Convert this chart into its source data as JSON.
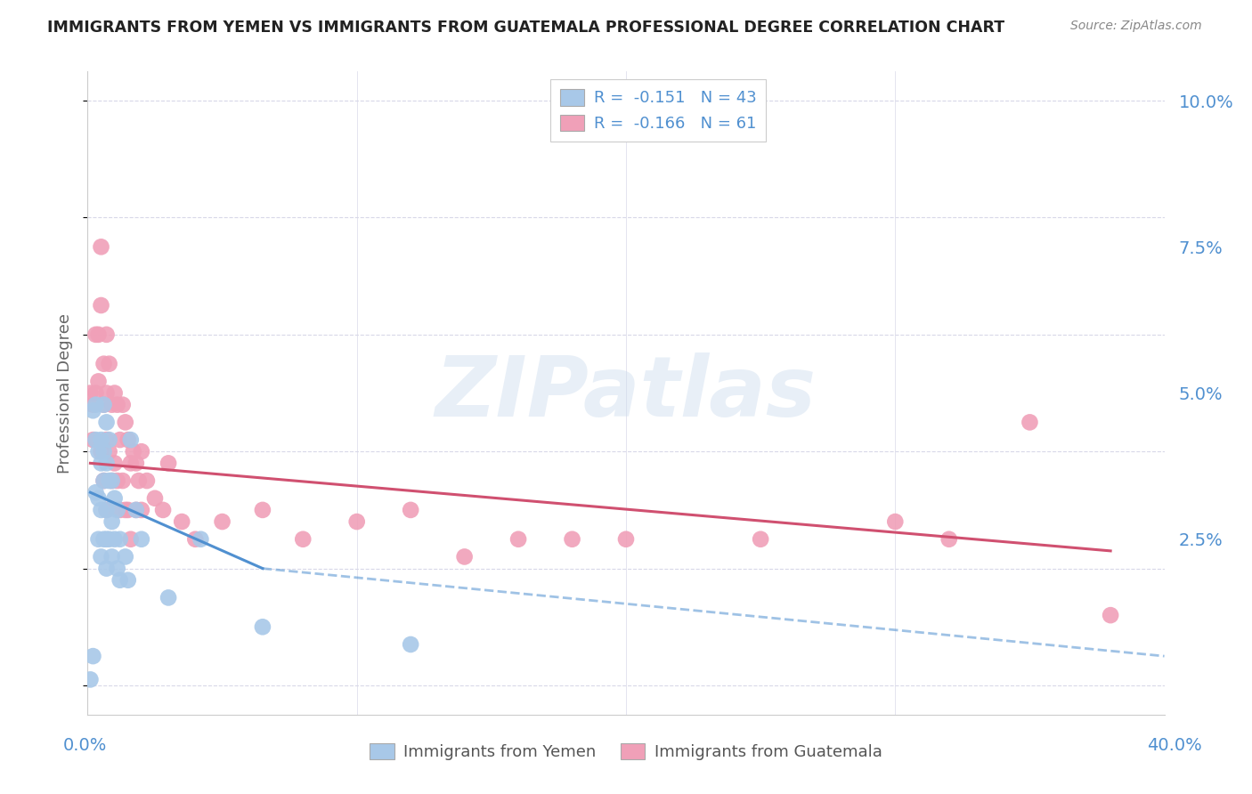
{
  "title": "IMMIGRANTS FROM YEMEN VS IMMIGRANTS FROM GUATEMALA PROFESSIONAL DEGREE CORRELATION CHART",
  "source": "Source: ZipAtlas.com",
  "ylabel": "Professional Degree",
  "xlim": [
    0.0,
    0.4
  ],
  "ylim": [
    -0.005,
    0.105
  ],
  "yticks": [
    0.0,
    0.025,
    0.05,
    0.075,
    0.1
  ],
  "ytick_labels": [
    "",
    "2.5%",
    "5.0%",
    "7.5%",
    "10.0%"
  ],
  "background_color": "#ffffff",
  "watermark_text": "ZIPatlas",
  "blue_color": "#a8c8e8",
  "pink_color": "#f0a0b8",
  "blue_line_color": "#5090d0",
  "pink_line_color": "#d05070",
  "grid_color": "#d8d8e8",
  "title_color": "#222222",
  "axis_label_color": "#5090d0",
  "yemen_scatter_x": [
    0.001,
    0.002,
    0.002,
    0.003,
    0.003,
    0.003,
    0.004,
    0.004,
    0.004,
    0.005,
    0.005,
    0.005,
    0.005,
    0.006,
    0.006,
    0.006,
    0.006,
    0.007,
    0.007,
    0.007,
    0.007,
    0.007,
    0.008,
    0.008,
    0.008,
    0.009,
    0.009,
    0.009,
    0.01,
    0.01,
    0.011,
    0.011,
    0.012,
    0.012,
    0.014,
    0.015,
    0.016,
    0.018,
    0.02,
    0.03,
    0.042,
    0.065,
    0.12
  ],
  "yemen_scatter_y": [
    0.001,
    0.047,
    0.005,
    0.042,
    0.033,
    0.048,
    0.04,
    0.032,
    0.025,
    0.042,
    0.038,
    0.03,
    0.022,
    0.048,
    0.04,
    0.035,
    0.025,
    0.045,
    0.038,
    0.03,
    0.025,
    0.02,
    0.042,
    0.035,
    0.025,
    0.035,
    0.028,
    0.022,
    0.032,
    0.025,
    0.03,
    0.02,
    0.025,
    0.018,
    0.022,
    0.018,
    0.042,
    0.03,
    0.025,
    0.015,
    0.025,
    0.01,
    0.007
  ],
  "guatemala_scatter_x": [
    0.001,
    0.002,
    0.002,
    0.003,
    0.003,
    0.004,
    0.004,
    0.005,
    0.005,
    0.005,
    0.006,
    0.006,
    0.006,
    0.007,
    0.007,
    0.007,
    0.007,
    0.008,
    0.008,
    0.009,
    0.009,
    0.01,
    0.01,
    0.011,
    0.011,
    0.012,
    0.012,
    0.013,
    0.013,
    0.014,
    0.014,
    0.015,
    0.015,
    0.016,
    0.016,
    0.017,
    0.018,
    0.018,
    0.019,
    0.02,
    0.02,
    0.022,
    0.025,
    0.028,
    0.03,
    0.035,
    0.04,
    0.05,
    0.065,
    0.08,
    0.1,
    0.12,
    0.14,
    0.16,
    0.18,
    0.2,
    0.25,
    0.3,
    0.32,
    0.35,
    0.38
  ],
  "guatemala_scatter_y": [
    0.05,
    0.048,
    0.042,
    0.06,
    0.05,
    0.06,
    0.052,
    0.075,
    0.065,
    0.04,
    0.055,
    0.048,
    0.035,
    0.06,
    0.05,
    0.042,
    0.03,
    0.055,
    0.04,
    0.048,
    0.035,
    0.05,
    0.038,
    0.048,
    0.035,
    0.042,
    0.03,
    0.048,
    0.035,
    0.045,
    0.03,
    0.042,
    0.03,
    0.038,
    0.025,
    0.04,
    0.038,
    0.03,
    0.035,
    0.04,
    0.03,
    0.035,
    0.032,
    0.03,
    0.038,
    0.028,
    0.025,
    0.028,
    0.03,
    0.025,
    0.028,
    0.03,
    0.022,
    0.025,
    0.025,
    0.025,
    0.025,
    0.028,
    0.025,
    0.045,
    0.012
  ],
  "yemen_line_x_start": 0.001,
  "yemen_line_x_end": 0.065,
  "yemen_line_x_dash_end": 0.4,
  "yemen_line_y_start": 0.033,
  "yemen_line_y_end": 0.02,
  "yemen_line_y_dash_end": 0.005,
  "guatemala_line_x_start": 0.001,
  "guatemala_line_x_end": 0.38,
  "guatemala_line_y_start": 0.038,
  "guatemala_line_y_end": 0.023
}
